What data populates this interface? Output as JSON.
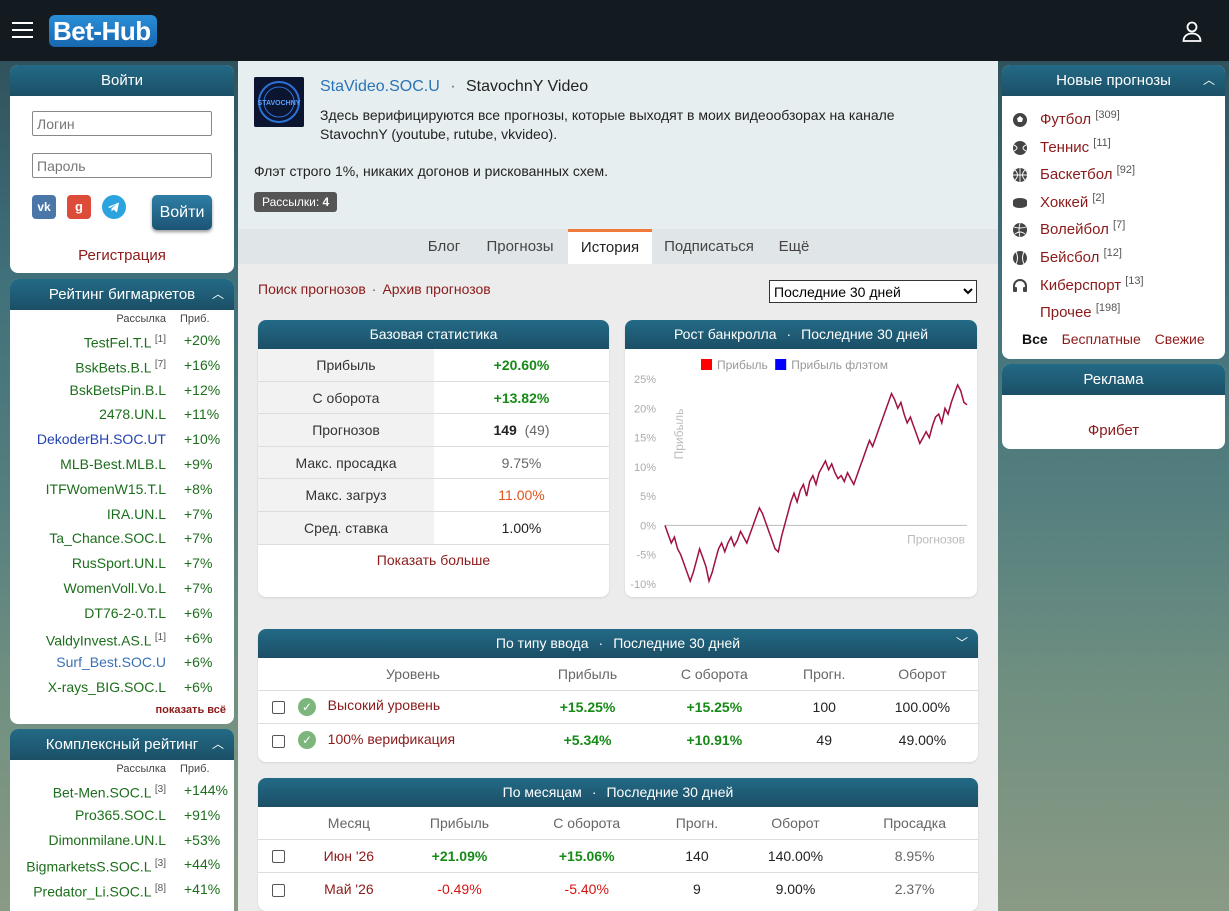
{
  "header": {
    "logo_main": "Bet",
    "logo_dash": "-",
    "logo_hub": "Hub"
  },
  "login": {
    "title": "Войти",
    "login_placeholder": "Логин",
    "password_placeholder": "Пароль",
    "vk": "vk",
    "ok": "g",
    "submit": "Войти",
    "register": "Регистрация"
  },
  "bigmarkets": {
    "title": "Рейтинг бигмаркетов",
    "col_name": "Рассылка",
    "col_val": "Приб.",
    "rows": [
      {
        "name": "TestFel.T.L",
        "sup": "[1]",
        "val": "+20%",
        "color": "#1c6e1c"
      },
      {
        "name": "BskBets.B.L",
        "sup": "[7]",
        "val": "+16%",
        "color": "#1c6e1c"
      },
      {
        "name": "BskBetsPin.B.L",
        "sup": "",
        "val": "+12%",
        "color": "#1c6e1c"
      },
      {
        "name": "2478.UN.L",
        "sup": "",
        "val": "+11%",
        "color": "#1c6e1c"
      },
      {
        "name": "DekoderBH.SOC.UT",
        "sup": "",
        "val": "+10%",
        "color": "#2343b0"
      },
      {
        "name": "MLB-Best.MLB.L",
        "sup": "",
        "val": "+9%",
        "color": "#1c6e1c"
      },
      {
        "name": "ITFWomenW15.T.L",
        "sup": "",
        "val": "+8%",
        "color": "#1c6e1c"
      },
      {
        "name": "IRA.UN.L",
        "sup": "",
        "val": "+7%",
        "color": "#1c6e1c"
      },
      {
        "name": "Ta_Chance.SOC.L",
        "sup": "",
        "val": "+7%",
        "color": "#1c6e1c"
      },
      {
        "name": "RusSport.UN.L",
        "sup": "",
        "val": "+7%",
        "color": "#1c6e1c"
      },
      {
        "name": "WomenVoll.Vo.L",
        "sup": "",
        "val": "+7%",
        "color": "#1c6e1c"
      },
      {
        "name": "DT76-2-0.T.L",
        "sup": "",
        "val": "+6%",
        "color": "#1c6e1c"
      },
      {
        "name": "ValdyInvest.AS.L",
        "sup": "[1]",
        "val": "+6%",
        "color": "#1c6e1c"
      },
      {
        "name": "Surf_Best.SOC.U",
        "sup": "",
        "val": "+6%",
        "color": "#3a6fb5"
      },
      {
        "name": "X-rays_BIG.SOC.L",
        "sup": "",
        "val": "+6%",
        "color": "#1c6e1c"
      }
    ],
    "show_all": "показать всё"
  },
  "complex": {
    "title": "Комплексный рейтинг",
    "col_name": "Рассылка",
    "col_val": "Приб.",
    "rows": [
      {
        "name": "Bet-Men.SOC.L",
        "sup": "[3]",
        "val": "+144%"
      },
      {
        "name": "Pro365.SOC.L",
        "sup": "",
        "val": "+91%"
      },
      {
        "name": "Dimonmilane.UN.L",
        "sup": "",
        "val": "+53%"
      },
      {
        "name": "BigmarketsS.SOC.L",
        "sup": "[3]",
        "val": "+44%"
      },
      {
        "name": "Predator_Li.SOC.L",
        "sup": "[8]",
        "val": "+41%"
      }
    ]
  },
  "channel": {
    "link": "StaVideo.SOC.U",
    "sep": "·",
    "name": "StavochnY Video",
    "avatar_text": "STAVOCHNY",
    "description": "Здесь верифицируются все прогнозы, которые выходят в моих видеообзорах на канале StavochnY (youtube, rutube, vkvideo).",
    "flat_note": "Флэт строго 1%, никаких догонов и рискованных схем.",
    "badge_label": "Рассылки:",
    "badge_count": "4"
  },
  "tabs": [
    {
      "label": "Блог"
    },
    {
      "label": "Прогнозы"
    },
    {
      "label": "История"
    },
    {
      "label": "Подписаться"
    },
    {
      "label": "Ещё"
    }
  ],
  "history_links": {
    "search": "Поиск прогнозов",
    "sep": "·",
    "archive": "Архив прогнозов"
  },
  "period": {
    "selected": "Последние 30 дней"
  },
  "base_stats": {
    "title": "Базовая статистика",
    "rows": [
      {
        "k": "Прибыль",
        "v": "+20.60%",
        "extra": ""
      },
      {
        "k": "С оборота",
        "v": "+13.82%",
        "extra": ""
      },
      {
        "k": "Прогнозов",
        "v": "149",
        "extra": "(49)"
      },
      {
        "k": "Макс. просадка",
        "v": "9.75%",
        "extra": ""
      },
      {
        "k": "Макс. загруз",
        "v": "11.00%",
        "extra": ""
      },
      {
        "k": "Сред. ставка",
        "v": "1.00%",
        "extra": ""
      }
    ],
    "more": "Показать больше"
  },
  "chart_title": "Рост банкролла",
  "chart_period": "Последние 30 дней",
  "chart_data": {
    "type": "line",
    "legend": [
      "Прибыль",
      "Прибыль флэтом"
    ],
    "legend_colors": [
      "#ff0000",
      "#0000ff"
    ],
    "ylabel": "Прибыль",
    "xlabel": "Прогнозов",
    "yticks": [
      "25%",
      "20%",
      "15%",
      "10%",
      "5%",
      "0%",
      "-5%",
      "-10%"
    ],
    "ylim": [
      -10,
      25
    ],
    "xlim": [
      0,
      149
    ],
    "line_color": "#a01040",
    "y": [
      0,
      -1.5,
      -3,
      -2,
      -4,
      -5,
      -6.5,
      -8,
      -9.5,
      -8,
      -6,
      -4,
      -5.5,
      -7,
      -9.5,
      -8,
      -6,
      -4,
      -3,
      -4.5,
      -3,
      -2,
      -3.5,
      -2.5,
      -1,
      -2,
      -3,
      -1.5,
      0,
      1.5,
      3,
      2,
      0.5,
      -1,
      -2.5,
      -4,
      -4.5,
      -2,
      0,
      2,
      4,
      5.5,
      4,
      6,
      7,
      5,
      7.5,
      8.5,
      7,
      9,
      10,
      11,
      9.5,
      10.5,
      9,
      8,
      8.5,
      7.5,
      9,
      8,
      7,
      8.5,
      10,
      11.5,
      13,
      14.5,
      13.5,
      15,
      16.5,
      18,
      19.5,
      21,
      22.5,
      21.5,
      20,
      21,
      19,
      17.5,
      18.5,
      17,
      15.5,
      14,
      15,
      16,
      15,
      17,
      18.5,
      19,
      17.5,
      20,
      19,
      21,
      22.5,
      24,
      23,
      21,
      20.6
    ]
  },
  "by_type": {
    "title": "По типу ввода",
    "sep": "·",
    "period": "Последние 30 дней",
    "headers": [
      "Уровень",
      "Прибыль",
      "С оборота",
      "Прогн.",
      "Оборот"
    ],
    "rows": [
      {
        "level": "Высокий уровень",
        "profit": "+15.25%",
        "turnover_profit": "+15.25%",
        "count": "100",
        "turnover": "100.00%"
      },
      {
        "level": "100% верификация",
        "profit": "+5.34%",
        "turnover_profit": "+10.91%",
        "count": "49",
        "turnover": "49.00%"
      }
    ]
  },
  "by_month": {
    "title": "По месяцам",
    "sep": "·",
    "period": "Последние 30 дней",
    "headers": [
      "Месяц",
      "Прибыль",
      "С оборота",
      "Прогн.",
      "Оборот",
      "Просадка"
    ],
    "rows": [
      {
        "month": "Июн '26",
        "profit": "+21.09%",
        "turnover_profit": "+15.06%",
        "count": "140",
        "turnover": "140.00%",
        "drawdown": "8.95%"
      },
      {
        "month": "Май '26",
        "profit": "-0.49%",
        "turnover_profit": "-5.40%",
        "count": "9",
        "turnover": "9.00%",
        "drawdown": "2.37%"
      }
    ]
  },
  "sports": {
    "title": "Новые прогнозы",
    "items": [
      {
        "label": "Футбол",
        "count": "[309]",
        "icon": "football-icon"
      },
      {
        "label": "Теннис",
        "count": "[11]",
        "icon": "tennis-icon"
      },
      {
        "label": "Баскетбол",
        "count": "[92]",
        "icon": "basketball-icon"
      },
      {
        "label": "Хоккей",
        "count": "[2]",
        "icon": "hockey-icon"
      },
      {
        "label": "Волейбол",
        "count": "[7]",
        "icon": "volleyball-icon"
      },
      {
        "label": "Бейсбол",
        "count": "[12]",
        "icon": "baseball-icon"
      },
      {
        "label": "Киберспорт",
        "count": "[13]",
        "icon": "esports-icon"
      },
      {
        "label": "Прочее",
        "count": "[198]",
        "icon": ""
      }
    ],
    "filters": [
      "Все",
      "Бесплатные",
      "Свежие"
    ]
  },
  "ads": {
    "title": "Реклама",
    "link": "Фрибет"
  }
}
